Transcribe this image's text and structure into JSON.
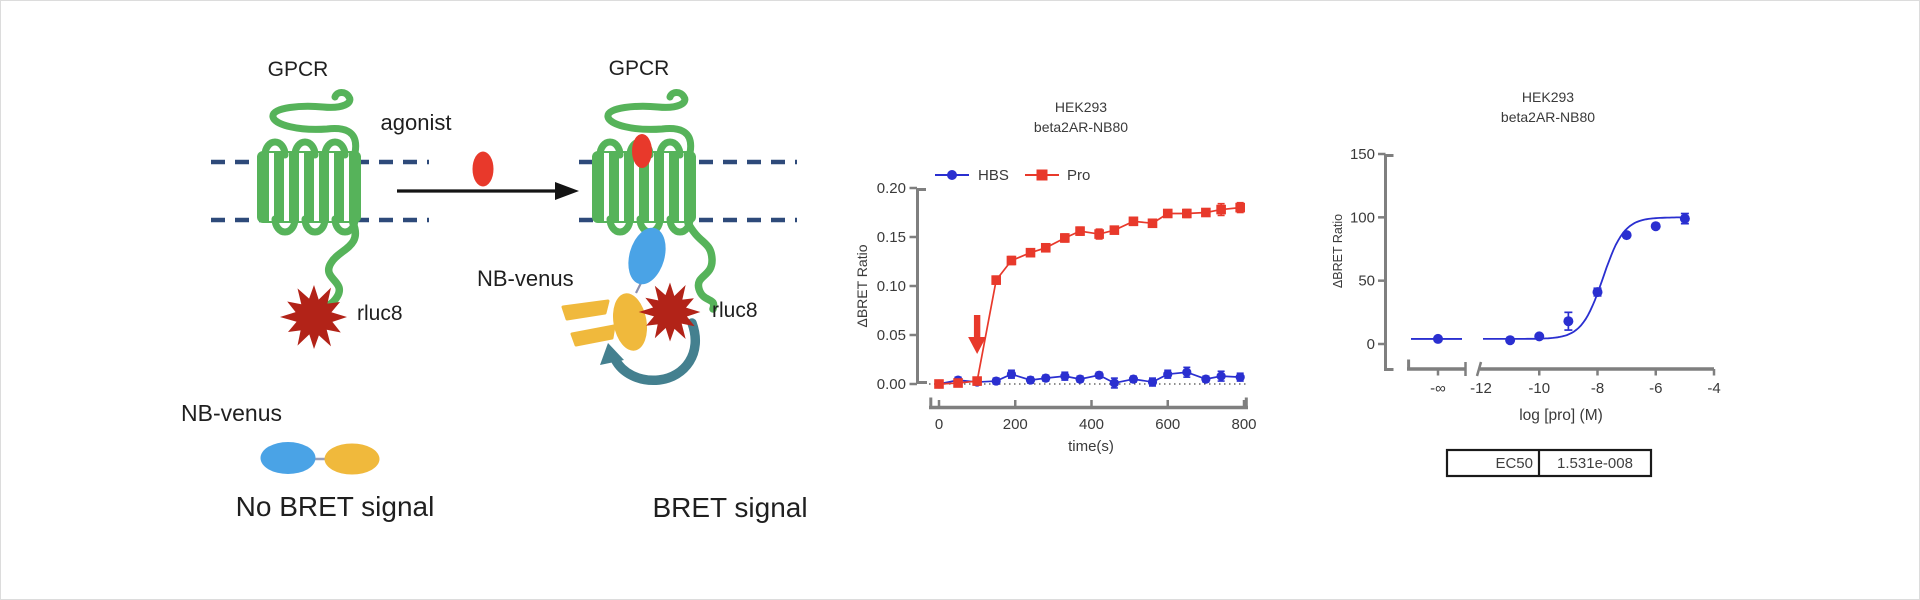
{
  "diagram": {
    "gpcr_left_label": "GPCR",
    "gpcr_right_label": "GPCR",
    "agonist_label": "agonist",
    "rluc8_left_label": "rluc8",
    "rluc8_right_label": "rluc8",
    "nb_venus_right_label": "NB-venus",
    "nb_venus_bottom_label": "NB-venus",
    "no_bret_label": "No BRET signal",
    "bret_label": "BRET signal",
    "colors": {
      "receptor_green": "#56b35a",
      "membrane_navy": "#2e4a7a",
      "agonist_red": "#e8392b",
      "rluc8_darkred": "#b22318",
      "nb_blue": "#4aa3e6",
      "venus_yellow": "#f0b93c",
      "transfer_teal": "#44808f"
    }
  },
  "chart_data": [
    {
      "type": "line",
      "title_lines": [
        "HEK293",
        "beta2AR-NB80"
      ],
      "xlabel": "time(s)",
      "ylabel": "ΔBRET Ratio",
      "xlim": [
        0,
        800
      ],
      "ylim": [
        0,
        0.2
      ],
      "xticks": [
        0,
        200,
        400,
        600,
        800
      ],
      "yticks": [
        "0.00",
        "0.05",
        "0.10",
        "0.15",
        "0.20"
      ],
      "grid": false,
      "legend_position": "top",
      "zero_baseline_dotted": true,
      "injection_arrow_time": 100,
      "x": [
        0,
        50,
        100,
        150,
        190,
        240,
        280,
        330,
        370,
        420,
        460,
        510,
        560,
        600,
        650,
        700,
        740,
        790
      ],
      "series": [
        {
          "name": "HBS",
          "color": "#2a2fd0",
          "marker": "circle",
          "values": [
            0.0,
            0.004,
            0.002,
            0.003,
            0.01,
            0.004,
            0.006,
            0.008,
            0.005,
            0.009,
            0.001,
            0.005,
            0.002,
            0.01,
            0.012,
            0.005,
            0.008,
            0.007
          ],
          "errors": [
            0.003,
            0.003,
            0.003,
            0.003,
            0.004,
            0.003,
            0.003,
            0.004,
            0.003,
            0.003,
            0.005,
            0.003,
            0.004,
            0.004,
            0.005,
            0.003,
            0.005,
            0.004
          ]
        },
        {
          "name": "Pro",
          "color": "#e8392b",
          "marker": "square",
          "values": [
            0.0,
            0.001,
            0.003,
            0.106,
            0.126,
            0.134,
            0.139,
            0.149,
            0.156,
            0.153,
            0.157,
            0.166,
            0.164,
            0.174,
            0.174,
            0.175,
            0.178,
            0.18
          ],
          "errors": [
            0.003,
            0.003,
            0.003,
            0.004,
            0.004,
            0.003,
            0.003,
            0.004,
            0.004,
            0.005,
            0.003,
            0.004,
            0.004,
            0.003,
            0.004,
            0.003,
            0.006,
            0.005
          ]
        }
      ]
    },
    {
      "type": "scatter",
      "title_lines": [
        "HEK293",
        "beta2AR-NB80"
      ],
      "xlabel": "log [pro] (M)",
      "ylabel": "ΔBRET Ratio",
      "ylim": [
        0,
        150
      ],
      "yticks": [
        0,
        50,
        100,
        150
      ],
      "xtick_labels": [
        "-∞",
        "-12",
        "-10",
        "-8",
        "-6",
        "-4"
      ],
      "xtick_values": [
        -12,
        -10,
        -8,
        -6,
        -4
      ],
      "broken_x_axis": true,
      "color": "#2a2fd0",
      "points": {
        "x_log": [
          "-inf",
          -11,
          -10,
          -9,
          -8,
          -7,
          -6,
          -5
        ],
        "y": [
          4,
          3,
          6,
          18,
          41,
          86,
          93,
          99
        ],
        "errors": [
          0,
          0,
          0,
          7,
          3,
          0,
          0,
          4
        ]
      },
      "fit": {
        "model": "sigmoidal-dose-response",
        "bottom": 4,
        "top": 100,
        "logEC50": -7.815,
        "hill": 1.2
      },
      "result_table": {
        "param_label": "EC50",
        "value": "1.531e-008"
      }
    }
  ]
}
